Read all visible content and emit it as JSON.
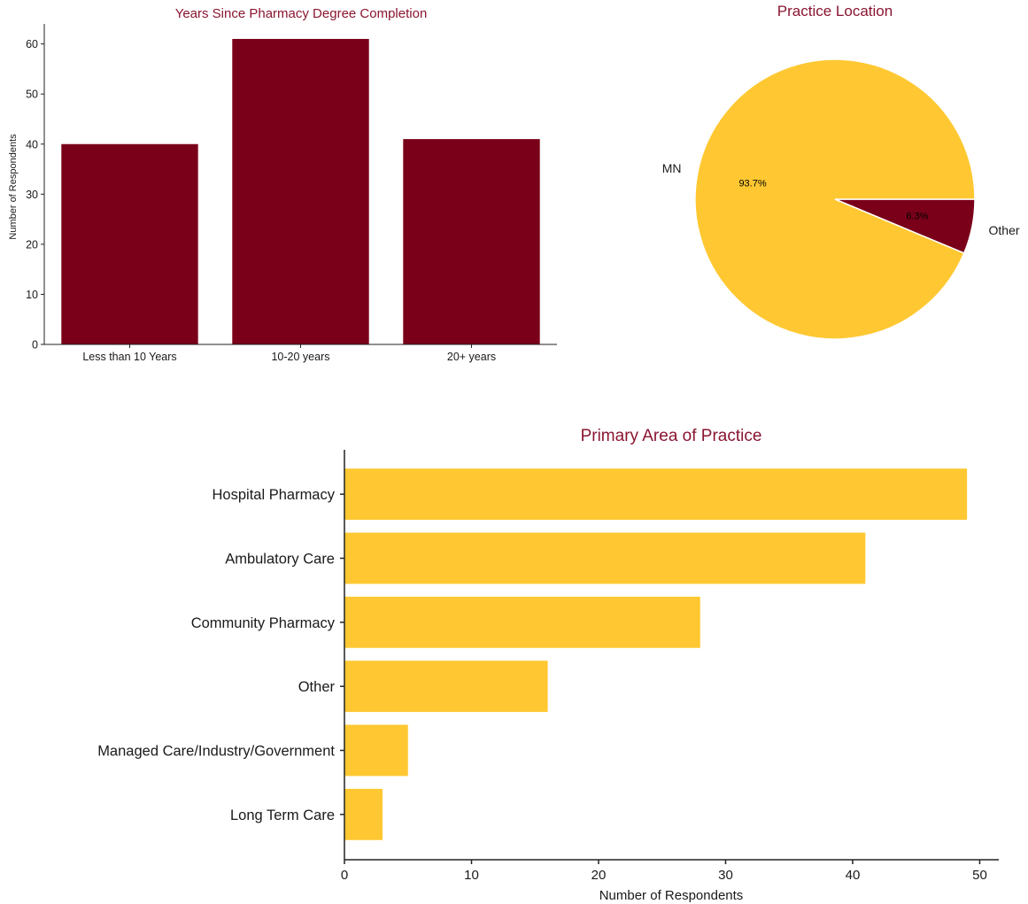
{
  "colors": {
    "maroon": "#7a0019",
    "gold": "#ffc832",
    "title": "#8a1530",
    "axis": "#222222",
    "text": "#1a1a1a"
  },
  "chart_data": [
    {
      "id": "years",
      "type": "bar",
      "title": "Years Since Pharmacy Degree Completion",
      "xlabel": "",
      "ylabel": "Number of Respondents",
      "categories": [
        "Less than 10 Years",
        "10-20 years",
        "20+ years"
      ],
      "values": [
        40,
        61,
        41
      ],
      "ylim": [
        0,
        64
      ],
      "yticks": [
        0,
        10,
        20,
        30,
        40,
        50,
        60
      ],
      "color": "maroon",
      "grid": false
    },
    {
      "id": "location",
      "type": "pie",
      "title": "Practice Location",
      "labels": [
        "MN",
        "Other"
      ],
      "values": [
        93.7,
        6.3
      ],
      "value_labels": [
        "93.7%",
        "6.3%"
      ],
      "colors": [
        "gold",
        "maroon"
      ]
    },
    {
      "id": "area",
      "type": "bar",
      "orientation": "horizontal",
      "title": "Primary Area of Practice",
      "xlabel": "Number of Respondents",
      "ylabel": "",
      "categories": [
        "Hospital Pharmacy",
        "Ambulatory Care",
        "Community Pharmacy",
        "Other",
        "Managed Care/Industry/Government",
        "Long Term Care"
      ],
      "values": [
        49,
        41,
        28,
        16,
        5,
        3
      ],
      "xlim": [
        0,
        51.5
      ],
      "xticks": [
        0,
        10,
        20,
        30,
        40,
        50
      ],
      "color": "gold",
      "grid": false
    }
  ]
}
